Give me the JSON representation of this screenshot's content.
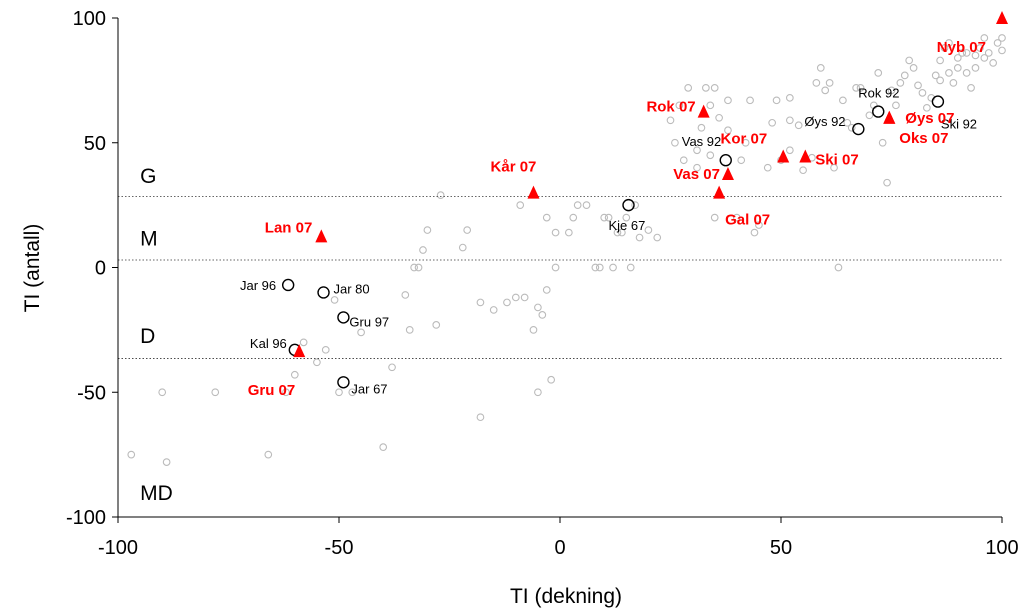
{
  "chart_data": {
    "type": "scatter",
    "xlabel": "TI (dekning)",
    "ylabel": "TI (antall)",
    "xlim": [
      -100,
      100
    ],
    "ylim": [
      -100,
      100
    ],
    "xticks": [
      -100,
      -50,
      0,
      50,
      100
    ],
    "yticks": [
      -100,
      -50,
      0,
      50,
      100
    ],
    "grid": false,
    "zones": [
      {
        "label": "G",
        "y": 28.5,
        "label_y": 37
      },
      {
        "label": "M",
        "y": 3,
        "label_y": 12
      },
      {
        "label": "D",
        "y": -36.5,
        "label_y": -27
      },
      {
        "label": "MD",
        "y": null,
        "label_y": -90
      }
    ],
    "background_series": {
      "marker": "open-circle",
      "color": "#bbbbbb",
      "points": [
        [
          -97,
          -75
        ],
        [
          -90,
          -50
        ],
        [
          -89,
          -78
        ],
        [
          -78,
          -50
        ],
        [
          -66,
          -75
        ],
        [
          -62,
          -50
        ],
        [
          -60,
          -43
        ],
        [
          -58,
          -30
        ],
        [
          -55,
          -38
        ],
        [
          -53,
          -33
        ],
        [
          -51,
          -13
        ],
        [
          -50,
          -50
        ],
        [
          -47,
          -50
        ],
        [
          -45,
          -26
        ],
        [
          -40,
          -72
        ],
        [
          -38,
          -40
        ],
        [
          -35,
          -11
        ],
        [
          -34,
          -25
        ],
        [
          -33,
          0
        ],
        [
          -32,
          0
        ],
        [
          -31,
          7
        ],
        [
          -30,
          15
        ],
        [
          -28,
          -23
        ],
        [
          -27,
          29
        ],
        [
          -22,
          8
        ],
        [
          -21,
          15
        ],
        [
          -18,
          -60
        ],
        [
          -18,
          -14
        ],
        [
          -15,
          -17
        ],
        [
          -12,
          -14
        ],
        [
          -10,
          -12
        ],
        [
          -8,
          -12
        ],
        [
          -9,
          25
        ],
        [
          -6,
          -25
        ],
        [
          -5,
          -50
        ],
        [
          -5,
          -16
        ],
        [
          -4,
          -19
        ],
        [
          -3,
          -9
        ],
        [
          -2,
          -45
        ],
        [
          -1,
          0
        ],
        [
          -3,
          20
        ],
        [
          -1,
          14
        ],
        [
          2,
          14
        ],
        [
          3,
          20
        ],
        [
          4,
          25
        ],
        [
          6,
          25
        ],
        [
          8,
          0
        ],
        [
          9,
          0
        ],
        [
          10,
          20
        ],
        [
          11,
          20
        ],
        [
          12,
          0
        ],
        [
          13,
          14
        ],
        [
          14,
          14
        ],
        [
          15,
          20
        ],
        [
          16,
          0
        ],
        [
          17,
          25
        ],
        [
          18,
          12
        ],
        [
          20,
          15
        ],
        [
          22,
          12
        ],
        [
          25,
          59
        ],
        [
          26,
          50
        ],
        [
          28,
          43
        ],
        [
          27,
          65
        ],
        [
          29,
          72
        ],
        [
          31,
          40
        ],
        [
          31,
          47
        ],
        [
          32,
          56
        ],
        [
          33,
          72
        ],
        [
          34,
          65
        ],
        [
          34,
          45
        ],
        [
          35,
          72
        ],
        [
          35,
          20
        ],
        [
          36,
          60
        ],
        [
          38,
          67
        ],
        [
          38,
          55
        ],
        [
          40,
          20
        ],
        [
          41,
          43
        ],
        [
          42,
          50
        ],
        [
          43,
          67
        ],
        [
          44,
          14
        ],
        [
          45,
          17
        ],
        [
          47,
          40
        ],
        [
          48,
          58
        ],
        [
          49,
          67
        ],
        [
          50,
          43
        ],
        [
          52,
          47
        ],
        [
          52,
          59
        ],
        [
          52,
          68
        ],
        [
          54,
          57
        ],
        [
          55,
          39
        ],
        [
          57,
          44
        ],
        [
          58,
          74
        ],
        [
          59,
          80
        ],
        [
          60,
          71
        ],
        [
          61,
          74
        ],
        [
          62,
          40
        ],
        [
          63,
          0
        ],
        [
          64,
          67
        ],
        [
          65,
          58
        ],
        [
          66,
          56
        ],
        [
          67,
          72
        ],
        [
          68,
          72
        ],
        [
          70,
          61
        ],
        [
          71,
          65
        ],
        [
          72,
          78
        ],
        [
          73,
          50
        ],
        [
          74,
          34
        ],
        [
          75,
          71
        ],
        [
          76,
          65
        ],
        [
          77,
          74
        ],
        [
          78,
          77
        ],
        [
          79,
          83
        ],
        [
          80,
          80
        ],
        [
          81,
          73
        ],
        [
          82,
          70
        ],
        [
          83,
          64
        ],
        [
          84,
          68
        ],
        [
          85,
          77
        ],
        [
          86,
          83
        ],
        [
          87,
          88
        ],
        [
          88,
          90
        ],
        [
          89,
          74
        ],
        [
          90,
          80
        ],
        [
          91,
          86
        ],
        [
          92,
          78
        ],
        [
          93,
          72
        ],
        [
          94,
          85
        ],
        [
          95,
          88
        ],
        [
          96,
          92
        ],
        [
          97,
          86
        ],
        [
          98,
          82
        ],
        [
          99,
          90
        ],
        [
          100,
          92
        ],
        [
          100,
          87
        ],
        [
          96,
          84
        ],
        [
          94,
          80
        ],
        [
          92,
          86
        ],
        [
          90,
          84
        ],
        [
          88,
          78
        ],
        [
          86,
          75
        ]
      ]
    },
    "series": [
      {
        "marker": "open-circle",
        "color": "#000000",
        "points": [
          {
            "label": "Jar 96",
            "x": -61.5,
            "y": -7
          },
          {
            "label": "Jar 80",
            "x": -53.5,
            "y": -10
          },
          {
            "label": "Gru 97",
            "x": -49,
            "y": -20
          },
          {
            "label": "Kal 96",
            "x": -60,
            "y": -33
          },
          {
            "label": "Jar 67",
            "x": -49,
            "y": -46
          },
          {
            "label": "Kje 67",
            "x": 15.5,
            "y": 25
          },
          {
            "label": "Vas 92",
            "x": 37.5,
            "y": 43
          },
          {
            "label": "Øys 92",
            "x": 67.5,
            "y": 55.5
          },
          {
            "label": "Rok 92",
            "x": 72,
            "y": 62.5
          },
          {
            "label": "Ski 92",
            "x": 85.5,
            "y": 66.5
          }
        ]
      },
      {
        "marker": "filled-triangle",
        "color": "#ff0000",
        "points": [
          {
            "label": "Lan 07",
            "x": -54,
            "y": 12.5
          },
          {
            "label": "Gru 07",
            "x": -59,
            "y": -33.5
          },
          {
            "label": "Kår 07",
            "x": -6,
            "y": 30
          },
          {
            "label": "Vas 07",
            "x": 38,
            "y": 37.5
          },
          {
            "label": "Gal 07",
            "x": 36,
            "y": 30
          },
          {
            "label": "Rok 07",
            "x": 32.5,
            "y": 62.5
          },
          {
            "label": "Kor 07",
            "x": 50.5,
            "y": 44.5
          },
          {
            "label": "Ski 07",
            "x": 55.5,
            "y": 44.5
          },
          {
            "label": "Øys 07",
            "x": 74.5,
            "y": 60
          },
          {
            "label": "Oks 07",
            "x": 74.5,
            "y": 60
          },
          {
            "label": "Nyb 07",
            "x": 100,
            "y": 100
          }
        ]
      }
    ]
  }
}
